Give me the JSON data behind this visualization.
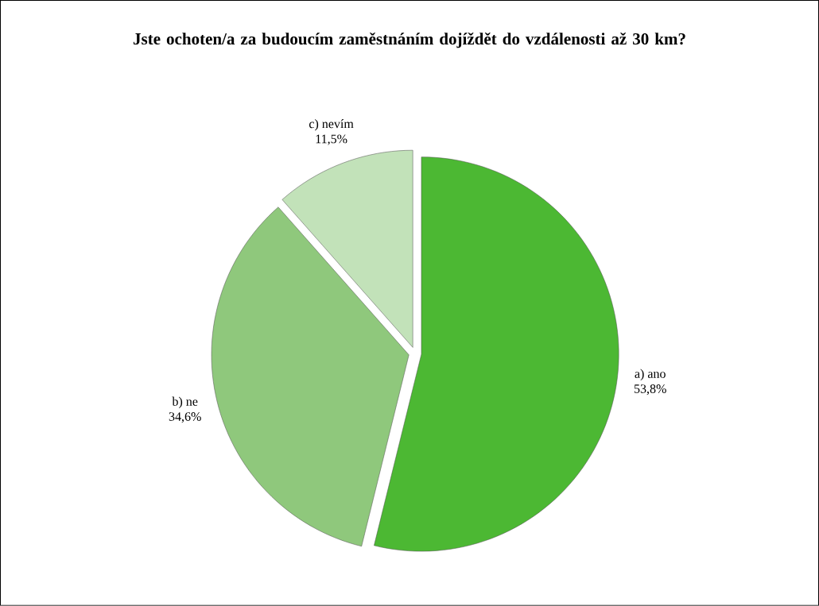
{
  "chart_data": {
    "type": "pie",
    "title": "Jste ochoten/a za budoucím zaměstnáním dojíždět do vzdálenosti až 30 km?",
    "categories": [
      "a) ano",
      "b) ne",
      "c) nevím"
    ],
    "values": [
      53.8,
      34.6,
      11.5
    ],
    "value_labels": [
      "53,8%",
      "34,6%",
      "11,5%"
    ],
    "colors": [
      "#4cb833",
      "#8fc87c",
      "#c2e2b9"
    ]
  }
}
